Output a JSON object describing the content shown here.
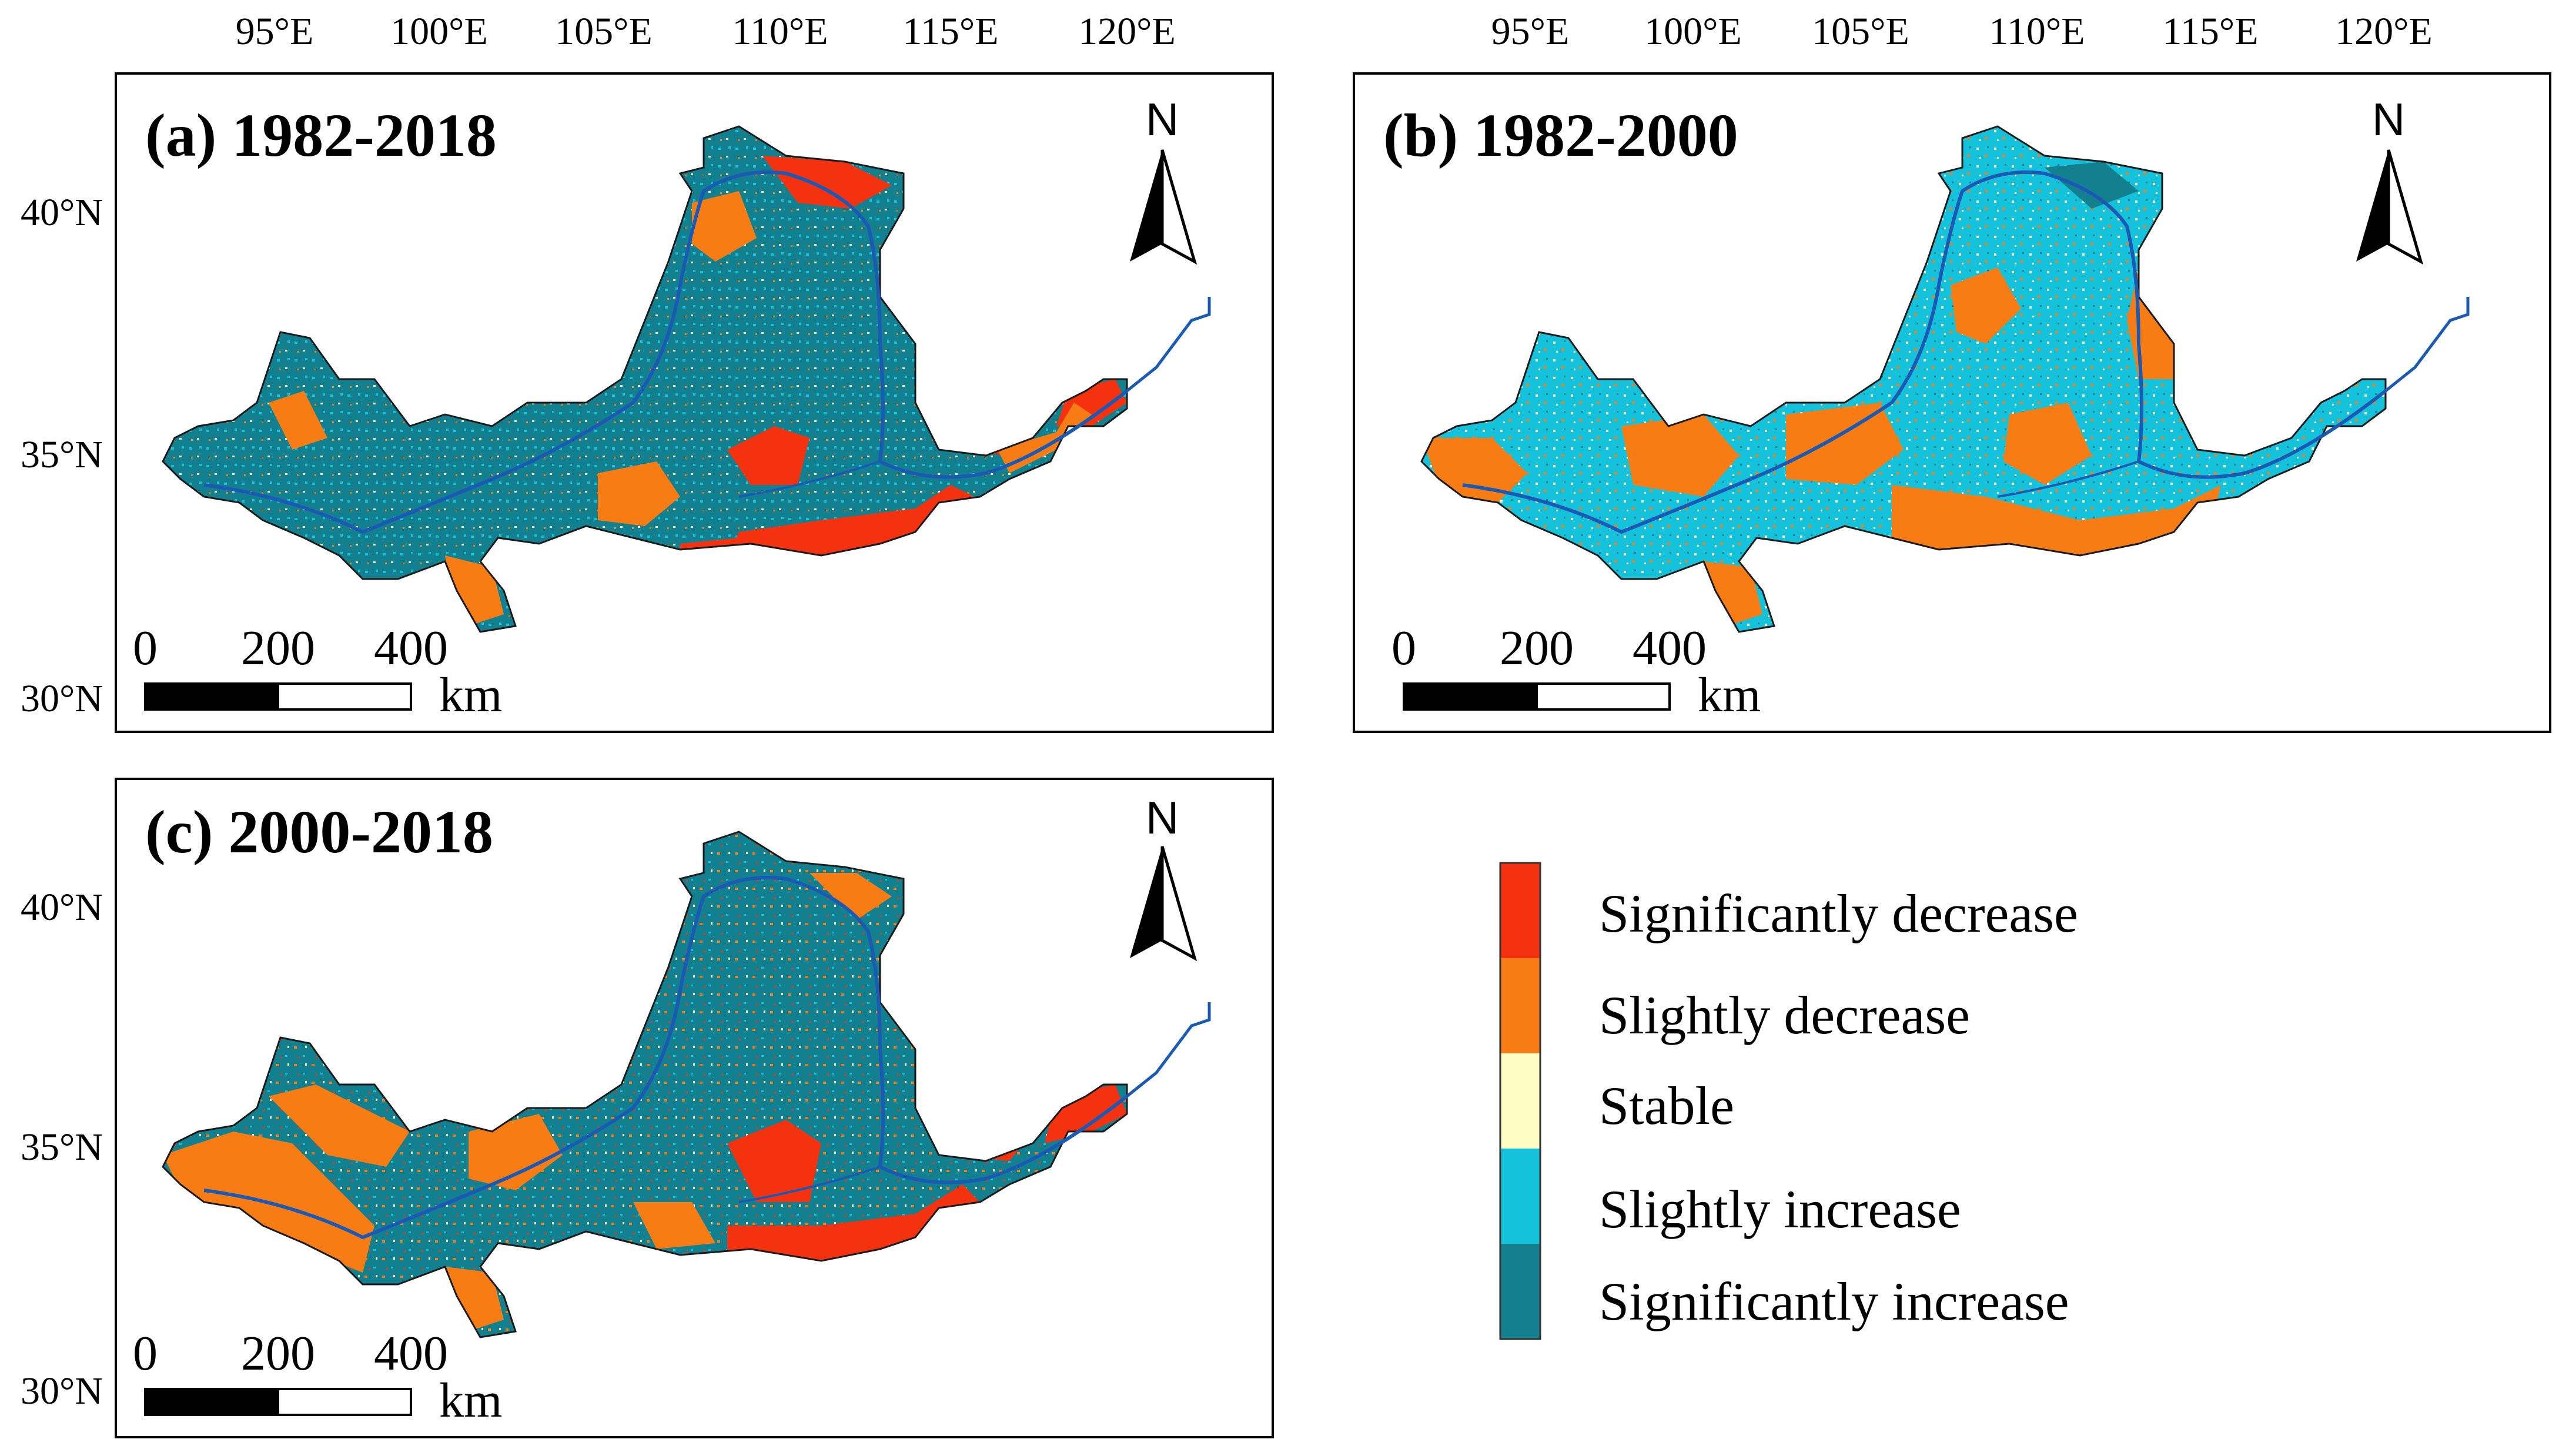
{
  "panels": [
    {
      "id": "a",
      "title": "(a) 1982-2018",
      "lon_ticks": [
        "95°E",
        "100°E",
        "105°E",
        "110°E",
        "115°E",
        "120°E"
      ],
      "lat_ticks": [
        "40°N",
        "35°N",
        "30°N"
      ],
      "north_label": "N",
      "scale": {
        "zero": "0",
        "mid": "200",
        "max": "400",
        "unit": "km"
      },
      "base_class": "significantly-increase",
      "scatter_class": "stable",
      "patch_class": "significantly-decrease"
    },
    {
      "id": "b",
      "title": "(b) 1982-2000",
      "lon_ticks": [
        "95°E",
        "100°E",
        "105°E",
        "110°E",
        "115°E",
        "120°E"
      ],
      "north_label": "N",
      "scale": {
        "zero": "0",
        "mid": "200",
        "max": "400",
        "unit": "km"
      },
      "base_class": "slightly-increase",
      "scatter_class": "stable",
      "patch_class": "slightly-decrease"
    },
    {
      "id": "c",
      "title": "(c) 2000-2018",
      "lat_ticks": [
        "40°N",
        "35°N",
        "30°N"
      ],
      "north_label": "N",
      "scale": {
        "zero": "0",
        "mid": "200",
        "max": "400",
        "unit": "km"
      },
      "base_class": "significantly-increase",
      "scatter_class": "stable",
      "patch_class": "significantly-decrease"
    }
  ],
  "legend": {
    "items": [
      {
        "label": "Significantly decrease",
        "color": "#f5320f"
      },
      {
        "label": "Slightly decrease",
        "color": "#f77c14"
      },
      {
        "label": "Stable",
        "color": "#fdfdc4"
      },
      {
        "label": "Slightly increase",
        "color": "#14c3db"
      },
      {
        "label": "Significantly increase",
        "color": "#13808f"
      }
    ]
  },
  "colors": {
    "river": "#1a5ab5",
    "boundary": "#1a1a1a"
  }
}
